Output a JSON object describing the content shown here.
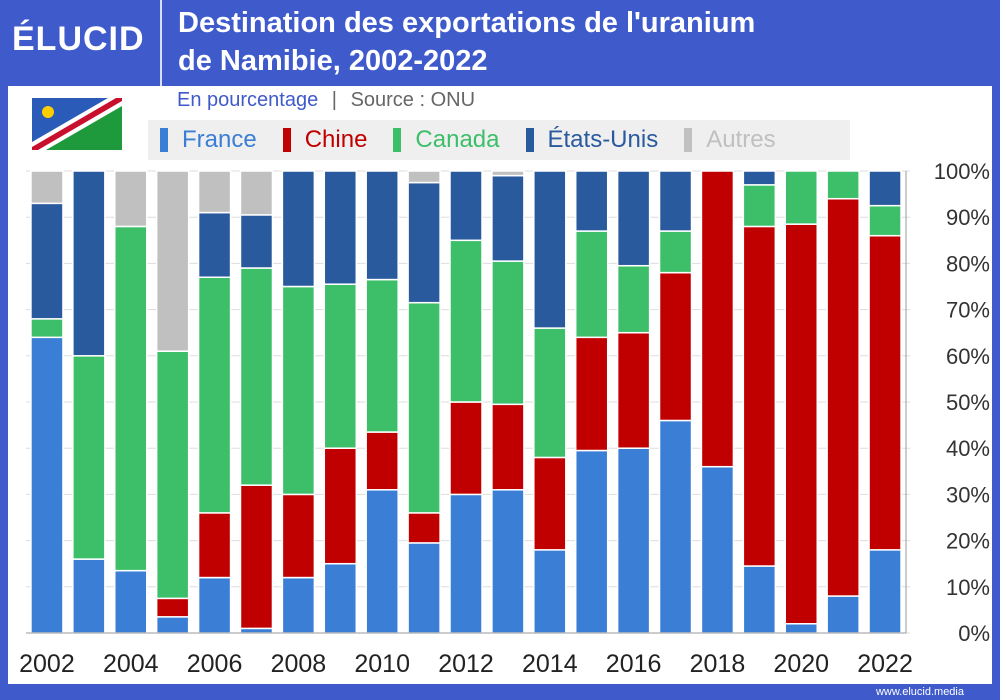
{
  "header": {
    "logo": "ÉLUCID",
    "title_line1": "Destination des exportations de l'uranium",
    "title_line2": "de Namibie, 2002-2022"
  },
  "subtitle": {
    "unit": "En pourcentage",
    "separator": "|",
    "source": "Source : ONU"
  },
  "footer": "www.elucid.media",
  "chart_data": {
    "type": "bar",
    "stacked": true,
    "title": "Destination des exportations de l'uranium de Namibie, 2002-2022",
    "ylabel": "En pourcentage",
    "ylim": [
      0,
      100
    ],
    "yticks": [
      "0%",
      "10%",
      "20%",
      "30%",
      "40%",
      "50%",
      "60%",
      "70%",
      "80%",
      "90%",
      "100%"
    ],
    "y_axis_side": "right",
    "categories": [
      "2002",
      "2003",
      "2004",
      "2005",
      "2006",
      "2007",
      "2008",
      "2009",
      "2010",
      "2011",
      "2012",
      "2013",
      "2014",
      "2015",
      "2016",
      "2017",
      "2018",
      "2019",
      "2020",
      "2021",
      "2022"
    ],
    "xtick_labels": [
      "2002",
      "2004",
      "2006",
      "2008",
      "2010",
      "2012",
      "2014",
      "2016",
      "2018",
      "2020",
      "2022"
    ],
    "legend_position": "top",
    "series": [
      {
        "name": "France",
        "color": "#3a7fd5",
        "values": [
          64,
          16,
          13.5,
          3.5,
          12,
          1,
          12,
          15,
          31,
          19.5,
          30,
          31,
          18,
          39.5,
          40,
          46,
          36,
          14.5,
          2,
          8,
          18
        ]
      },
      {
        "name": "Chine",
        "color": "#c00000",
        "values": [
          0,
          0,
          0,
          4,
          14,
          31,
          18,
          25,
          12.5,
          6.5,
          20,
          18.5,
          20,
          24.5,
          25,
          32,
          64,
          73.5,
          86.5,
          86,
          68
        ]
      },
      {
        "name": "Canada",
        "color": "#3dbf6a",
        "values": [
          4,
          44,
          74.5,
          53.5,
          51,
          47,
          45,
          35.5,
          33,
          45.5,
          35,
          31,
          28,
          23,
          14.5,
          9,
          0,
          9,
          11.5,
          6,
          6.5
        ]
      },
      {
        "name": "États-Unis",
        "color": "#2a5a9e",
        "values": [
          25,
          40,
          0,
          0,
          14,
          11.5,
          25,
          24.5,
          23.5,
          26,
          15,
          18.5,
          34,
          13,
          20.5,
          13,
          0,
          3,
          0,
          0,
          7.5
        ]
      },
      {
        "name": "Autres",
        "color": "#c0c0c0",
        "values": [
          7,
          0,
          12,
          39,
          9,
          9.5,
          0,
          0,
          0,
          2.5,
          0,
          1,
          0,
          0,
          0,
          0,
          0,
          0,
          0,
          0,
          0
        ]
      }
    ]
  }
}
